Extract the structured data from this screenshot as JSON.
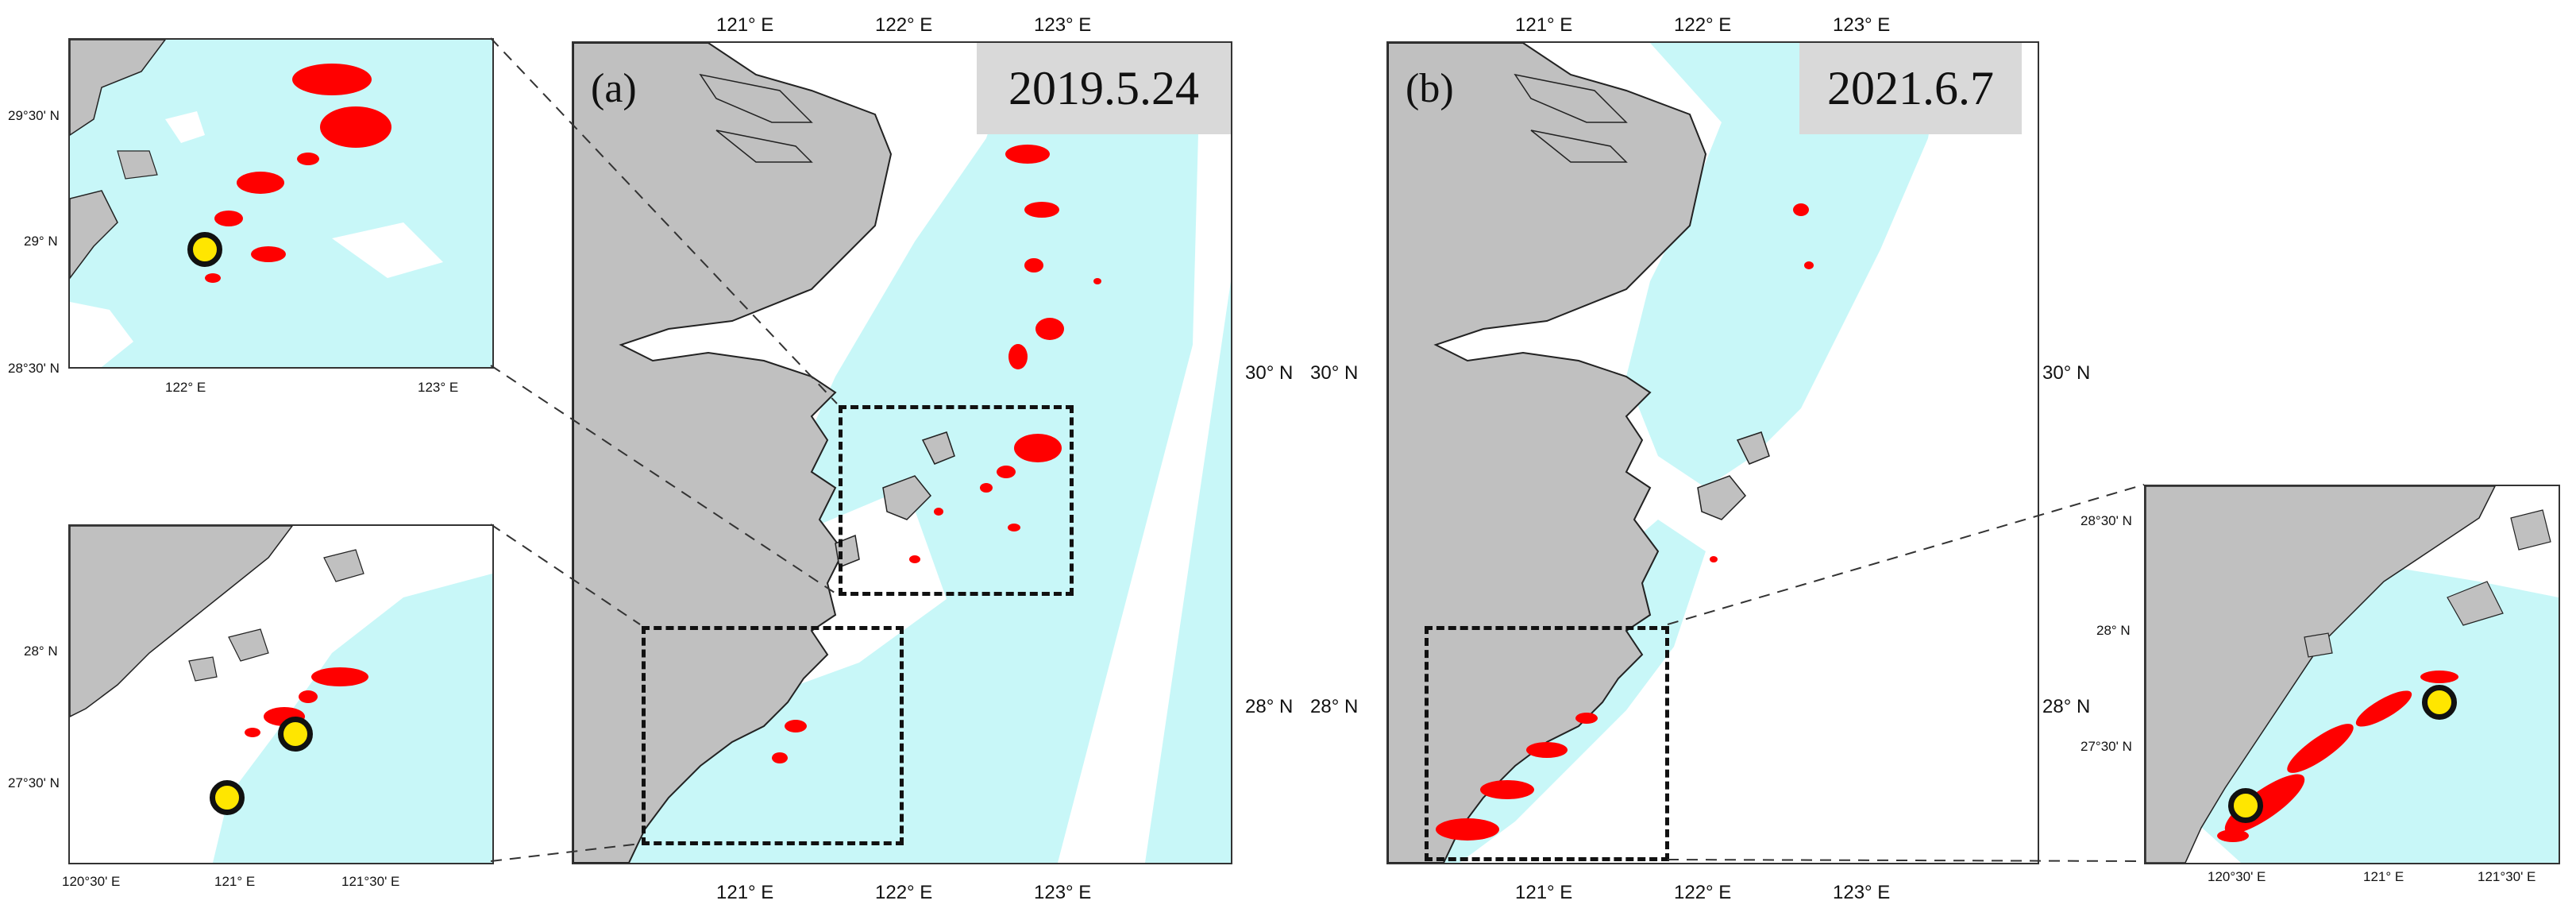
{
  "colors": {
    "land": "#c0c0c0",
    "sea_cloudfree": "#c8f7f8",
    "sea_masked": "#ffffff",
    "bloom": "#ff0000",
    "marker_fill": "#ffe600",
    "marker_ring": "#111111"
  },
  "panel_a": {
    "label": "(a)",
    "date": "2019.5.24",
    "top_ticks": [
      "121° E",
      "122° E",
      "123° E"
    ],
    "bottom_ticks": [
      "121° E",
      "122° E",
      "123° E"
    ],
    "right_ticks": [
      "30° N",
      "28° N"
    ]
  },
  "panel_b": {
    "label": "(b)",
    "date": "2021.6.7",
    "top_ticks": [
      "121° E",
      "122° E",
      "123° E"
    ],
    "bottom_ticks": [
      "121° E",
      "122° E",
      "123° E"
    ],
    "left_ticks": [
      "30° N",
      "28° N"
    ],
    "right_ticks": [
      "30° N",
      "28° N"
    ]
  },
  "inset_a_top": {
    "left_ticks": [
      "29°30' N",
      "29° N",
      "28°30' N"
    ],
    "bottom_ticks": [
      "122° E",
      "123° E"
    ]
  },
  "inset_a_bottom": {
    "left_ticks": [
      "28° N",
      "27°30' N"
    ],
    "bottom_ticks": [
      "120°30' E",
      "121° E",
      "121°30' E"
    ]
  },
  "inset_b": {
    "left_ticks": [
      "28°30' N",
      "28° N",
      "27°30' N"
    ],
    "bottom_ticks": [
      "120°30' E",
      "121° E",
      "121°30' E"
    ]
  }
}
